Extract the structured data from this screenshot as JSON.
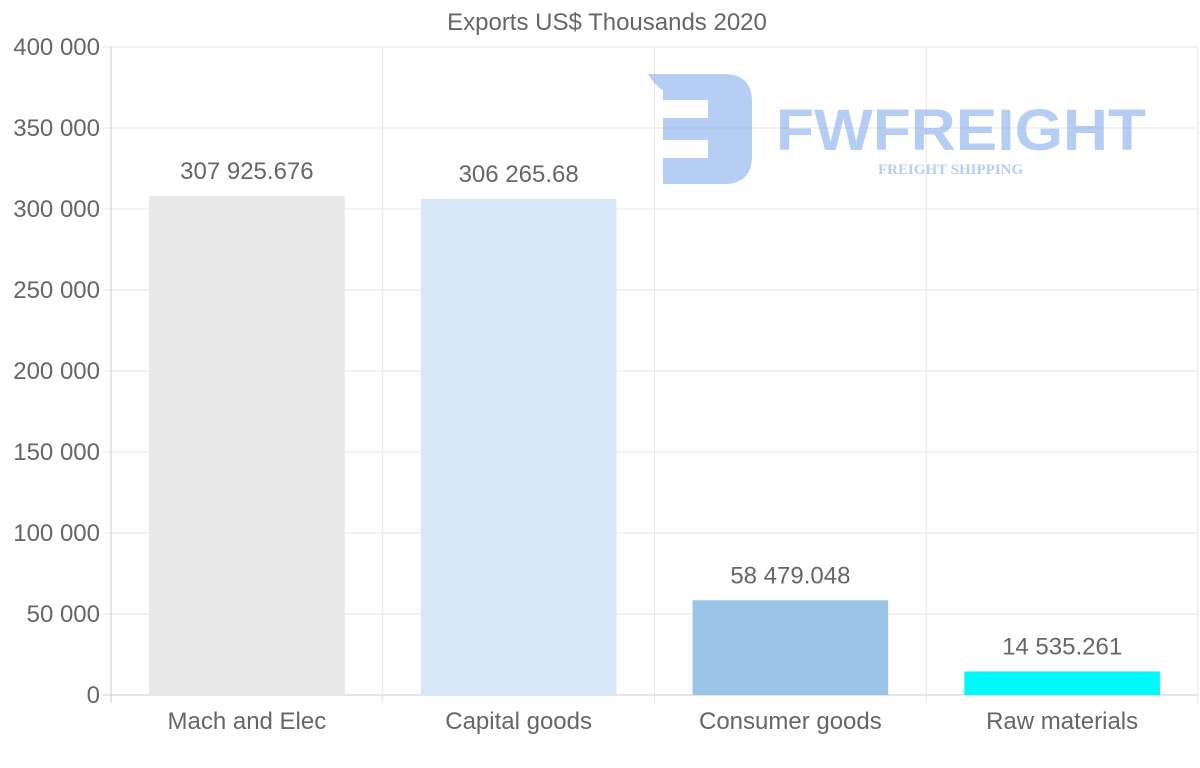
{
  "chart_data": {
    "type": "bar",
    "title": "Exports US$ Thousands 2020",
    "xlabel": "",
    "ylabel": "",
    "categories": [
      "Mach and Elec",
      "Capital goods",
      "Consumer goods",
      "Raw materials"
    ],
    "values": [
      307925.676,
      306265.68,
      58479.048,
      14535.261
    ],
    "value_labels": [
      "307 925.676",
      "306 265.68",
      "58 479.048",
      "14 535.261"
    ],
    "bar_colors": [
      "#e8e8e8",
      "#d7e8f8",
      "#9bc4e6",
      "#00f9fa"
    ],
    "ylim": [
      0,
      400000
    ],
    "yticks": [
      0,
      50000,
      100000,
      150000,
      200000,
      250000,
      300000,
      350000,
      400000
    ],
    "ytick_labels": [
      "0",
      "50 000",
      "100 000",
      "150 000",
      "200 000",
      "250 000",
      "300 000",
      "350 000",
      "400 000"
    ],
    "grid": true,
    "legend": "none"
  },
  "watermark": {
    "brand": "FWFREIGHT",
    "tagline": "FREIGHT SHIPPING",
    "color": "#7aa6ea"
  },
  "colors": {
    "text": "#666666",
    "grid": "#e6e6e6",
    "axis": "#cccccc"
  }
}
